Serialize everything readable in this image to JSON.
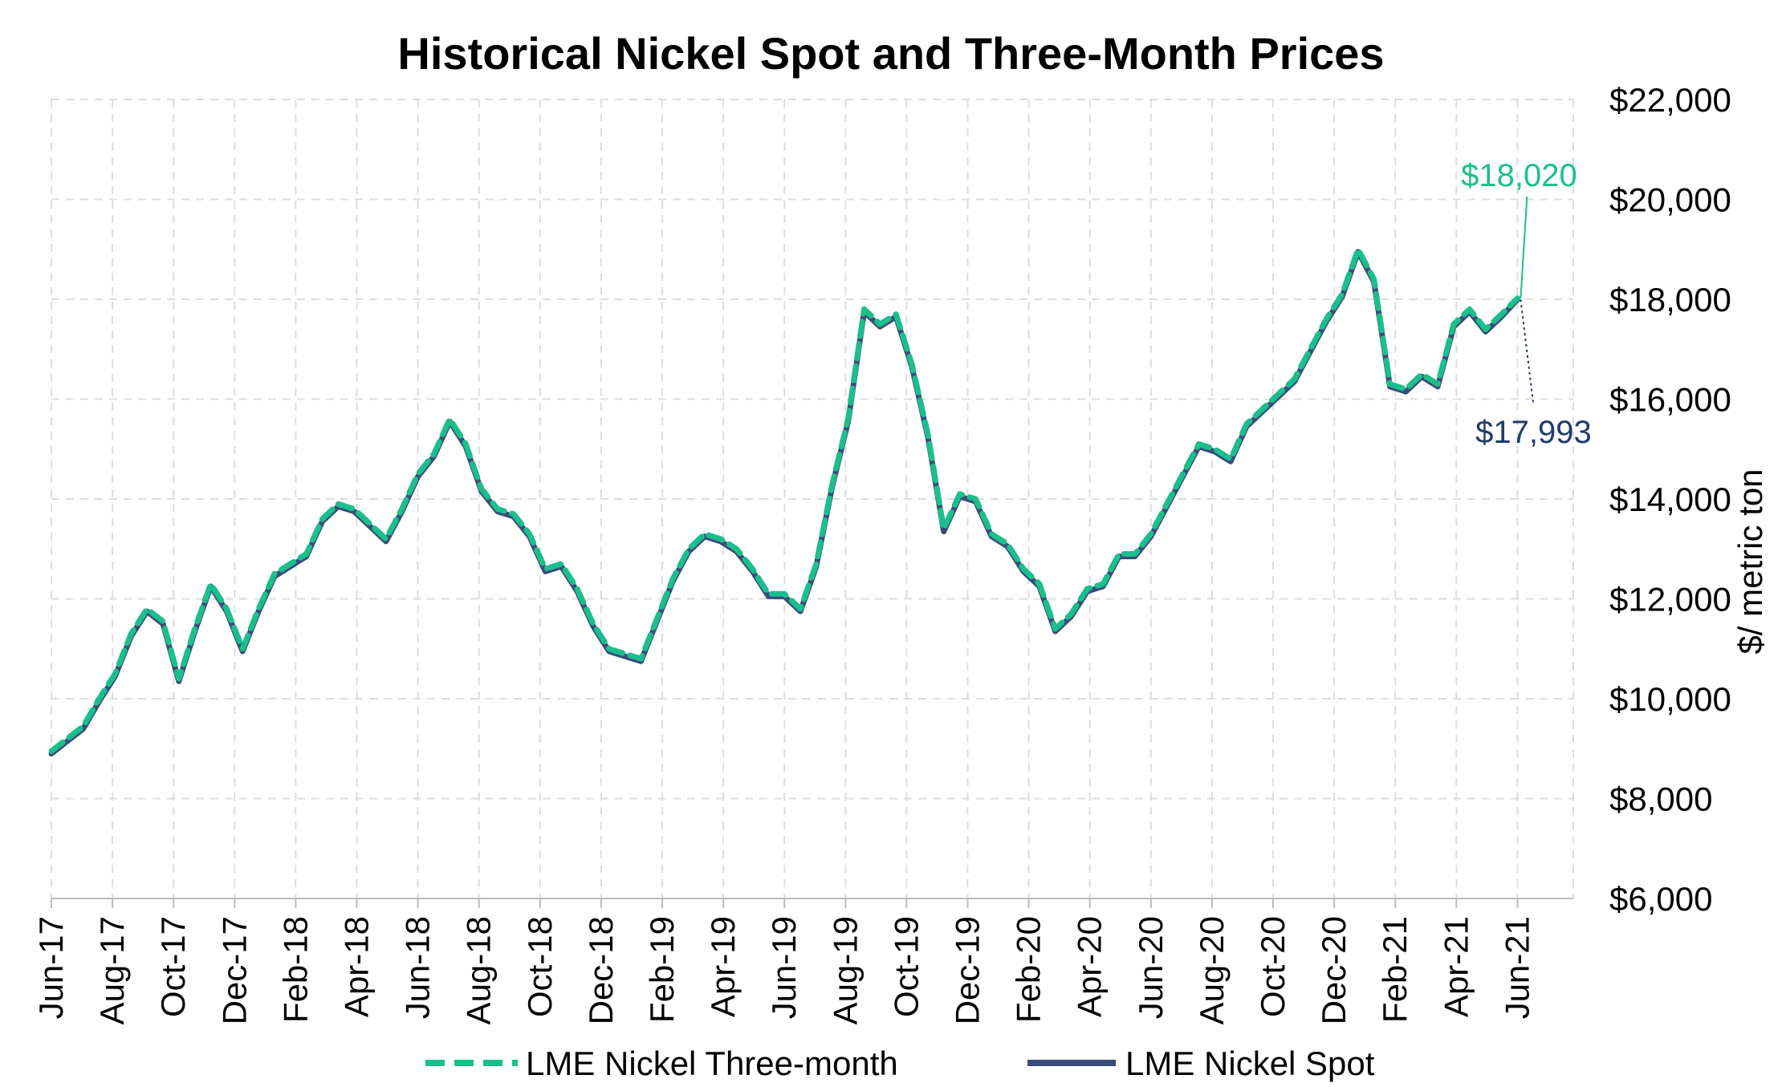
{
  "chart_data": {
    "type": "line",
    "title": "Historical Nickel Spot and Three-Month Prices",
    "ylabel": "$/ metric ton",
    "xlabel": "",
    "ylim": [
      6000,
      22000
    ],
    "y_ticks": [
      6000,
      8000,
      10000,
      12000,
      14000,
      16000,
      18000,
      20000,
      22000
    ],
    "y_tick_labels": [
      "$6,000",
      "$8,000",
      "$10,000",
      "$12,000",
      "$14,000",
      "$16,000",
      "$18,000",
      "$20,000",
      "$22,000"
    ],
    "x_tick_labels": [
      "Jun-17",
      "Aug-17",
      "Oct-17",
      "Dec-17",
      "Feb-18",
      "Apr-18",
      "Jun-18",
      "Aug-18",
      "Oct-18",
      "Dec-18",
      "Feb-19",
      "Apr-19",
      "Jun-19",
      "Aug-19",
      "Oct-19",
      "Dec-19",
      "Feb-20",
      "Apr-20",
      "Jun-20",
      "Aug-20",
      "Oct-20",
      "Dec-20",
      "Feb-21",
      "Apr-21",
      "Jun-21"
    ],
    "grid": true,
    "legend_position": "bottom",
    "series": [
      {
        "name": "LME Nickel Three-month",
        "color": "#1bbf8c",
        "style": "dashed",
        "values": [
          8950,
          9200,
          9450,
          10000,
          10500,
          11300,
          11800,
          11550,
          10400,
          11400,
          12300,
          11800,
          11000,
          11800,
          12500,
          12700,
          12900,
          13600,
          13900,
          13800,
          13500,
          13200,
          13800,
          14500,
          14900,
          15600,
          15100,
          14200,
          13800,
          13700,
          13300,
          12600,
          12700,
          12200,
          11500,
          11000,
          10900,
          10800,
          11600,
          12400,
          13000,
          13300,
          13200,
          13000,
          12600,
          12100,
          12100,
          11800,
          12700,
          14300,
          15600,
          17800,
          17500,
          17700,
          16700,
          15300,
          13400,
          14100,
          14000,
          13300,
          13100,
          12600,
          12300,
          11400,
          11700,
          12200,
          12300,
          12900,
          12900,
          13300,
          13900,
          14500,
          15100,
          15000,
          14800,
          15500,
          15800,
          16100,
          16400,
          17000,
          17600,
          18100,
          19000,
          18400,
          16300,
          16200,
          16500,
          16300,
          17500,
          17800,
          17400,
          17700,
          18020
        ]
      },
      {
        "name": "LME Nickel Spot",
        "color": "#3a4c78",
        "style": "solid",
        "values": [
          8900,
          9150,
          9400,
          9950,
          10450,
          11250,
          11750,
          11500,
          10350,
          11350,
          12250,
          11750,
          10950,
          11750,
          12450,
          12650,
          12850,
          13550,
          13850,
          13750,
          13450,
          13150,
          13750,
          14450,
          14850,
          15550,
          15050,
          14150,
          13750,
          13650,
          13250,
          12550,
          12650,
          12150,
          11450,
          10950,
          10850,
          10750,
          11550,
          12350,
          12950,
          13250,
          13150,
          12950,
          12550,
          12050,
          12050,
          11750,
          12650,
          14250,
          15550,
          17750,
          17450,
          17650,
          16650,
          15250,
          13350,
          14050,
          13950,
          13250,
          13050,
          12550,
          12250,
          11350,
          11650,
          12150,
          12250,
          12850,
          12850,
          13250,
          13850,
          14450,
          15050,
          14950,
          14750,
          15450,
          15750,
          16050,
          16350,
          16950,
          17550,
          18050,
          18950,
          18350,
          16250,
          16150,
          16450,
          16250,
          17450,
          17750,
          17350,
          17650,
          17993
        ]
      }
    ],
    "annotations": [
      {
        "text": "$18,020",
        "color": "#1bbf8c"
      },
      {
        "text": "$17,993",
        "color": "#1f3a6b"
      }
    ]
  }
}
